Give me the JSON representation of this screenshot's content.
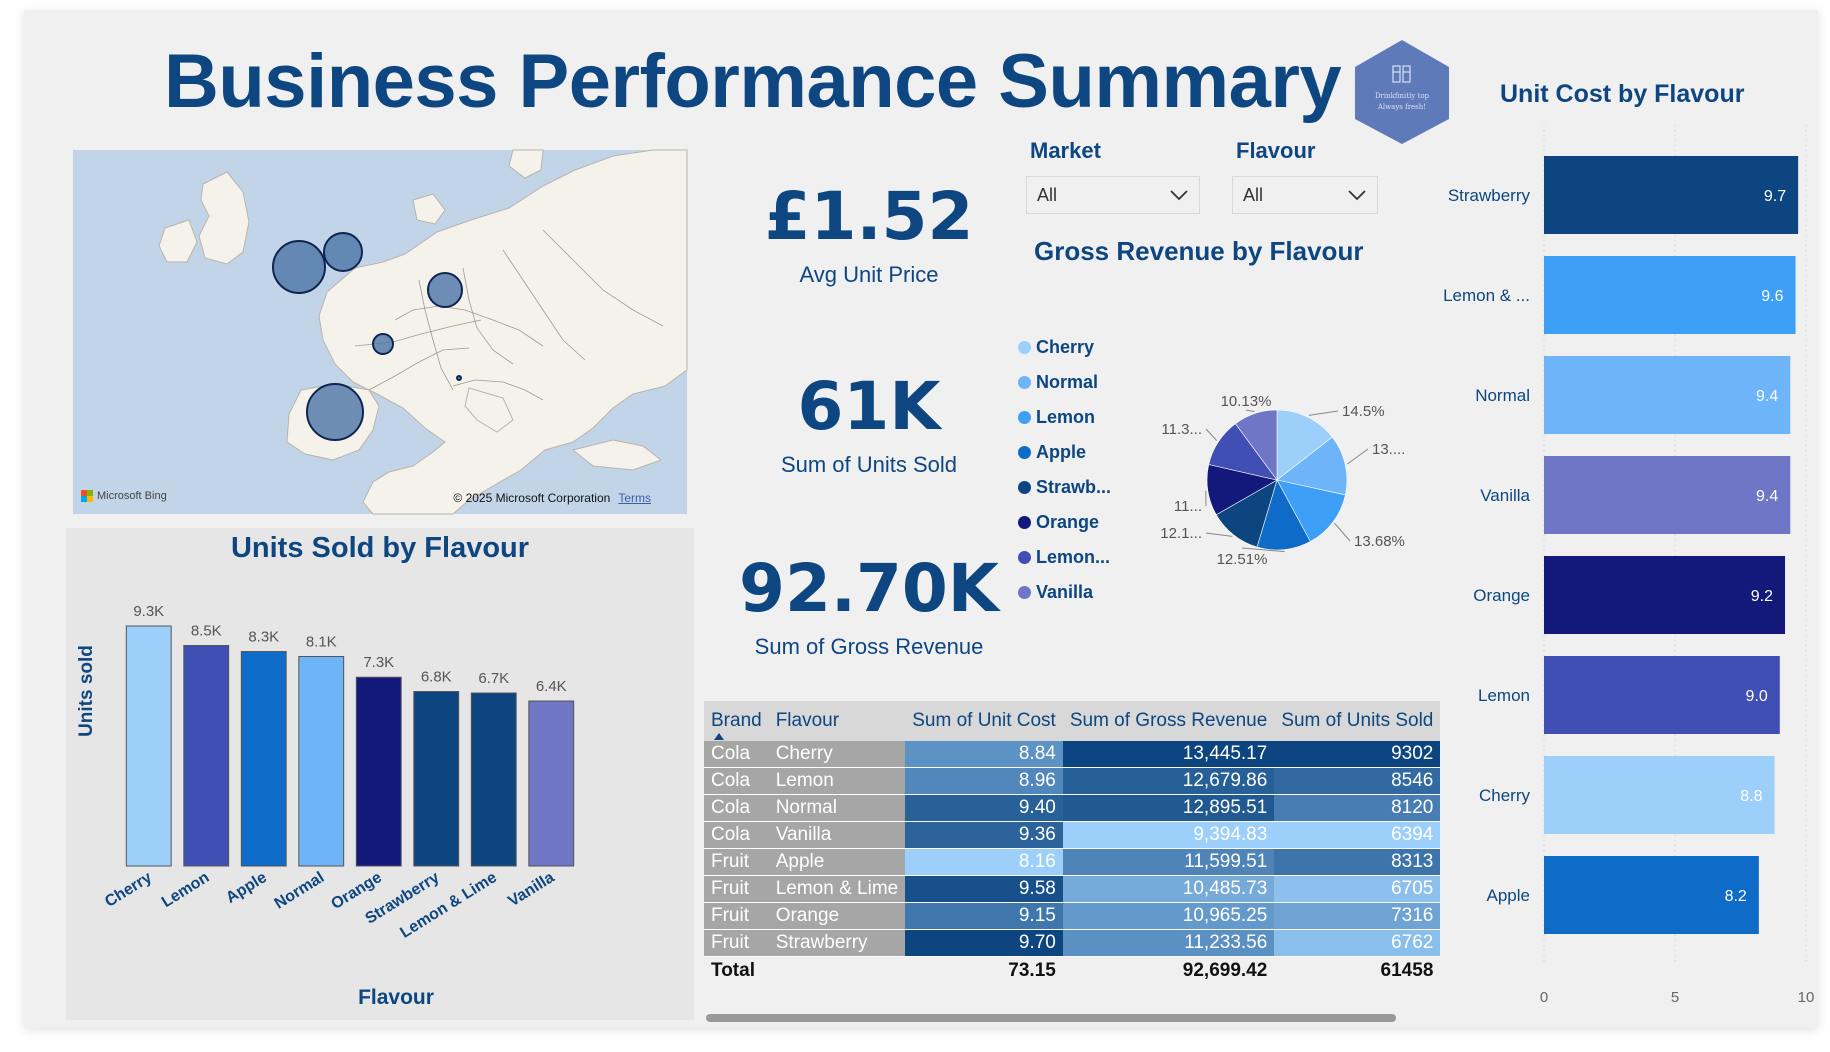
{
  "title": "Business Performance Summary",
  "logo": {
    "line1": "Drinkfinitly top",
    "line2": "Always fresh!",
    "color": "#5f7ab8"
  },
  "map": {
    "attribution_brand": "Microsoft Bing",
    "copyright": "© 2025 Microsoft Corporation",
    "terms": "Terms",
    "colors": {
      "water": "#c2d5e8",
      "land": "#f5f2ec",
      "bubble": "#4f76a8"
    }
  },
  "kpis": {
    "avg_unit_price": {
      "value": "£1.52",
      "label": "Avg Unit Price"
    },
    "units_sold": {
      "value": "61K",
      "label": "Sum of Units Sold"
    },
    "gross_revenue": {
      "value": "92.70K",
      "label": "Sum of Gross Revenue"
    }
  },
  "slicers": {
    "market": {
      "label": "Market",
      "value": "All"
    },
    "flavour": {
      "label": "Flavour",
      "value": "All"
    }
  },
  "table": {
    "headers": [
      "Brand",
      "Flavour",
      "Sum of Unit Cost",
      "Sum of Gross Revenue",
      "Sum of Units Sold"
    ],
    "rows": [
      {
        "brand": "Cola",
        "flavour": "Cherry",
        "unit_cost": "8.84",
        "gross_revenue": "13,445.17",
        "units_sold": "9302"
      },
      {
        "brand": "Cola",
        "flavour": "Lemon",
        "unit_cost": "8.96",
        "gross_revenue": "12,679.86",
        "units_sold": "8546"
      },
      {
        "brand": "Cola",
        "flavour": "Normal",
        "unit_cost": "9.40",
        "gross_revenue": "12,895.51",
        "units_sold": "8120"
      },
      {
        "brand": "Cola",
        "flavour": "Vanilla",
        "unit_cost": "9.36",
        "gross_revenue": "9,394.83",
        "units_sold": "6394"
      },
      {
        "brand": "Fruit",
        "flavour": "Apple",
        "unit_cost": "8.16",
        "gross_revenue": "11,599.51",
        "units_sold": "8313"
      },
      {
        "brand": "Fruit",
        "flavour": "Lemon & Lime",
        "unit_cost": "9.58",
        "gross_revenue": "10,485.73",
        "units_sold": "6705"
      },
      {
        "brand": "Fruit",
        "flavour": "Orange",
        "unit_cost": "9.15",
        "gross_revenue": "10,965.25",
        "units_sold": "7316"
      },
      {
        "brand": "Fruit",
        "flavour": "Strawberry",
        "unit_cost": "9.70",
        "gross_revenue": "11,233.56",
        "units_sold": "6762"
      }
    ],
    "total": {
      "label": "Total",
      "unit_cost": "73.15",
      "gross_revenue": "92,699.42",
      "units_sold": "61458"
    }
  },
  "chart_data": [
    {
      "type": "bar",
      "title": "Units Sold by Flavour",
      "xlabel": "Flavour",
      "ylabel": "Units sold",
      "categories": [
        "Cherry",
        "Lemon",
        "Apple",
        "Normal",
        "Orange",
        "Strawberry",
        "Lemon & Lime",
        "Vanilla"
      ],
      "values": [
        9302,
        8546,
        8313,
        8120,
        7316,
        6762,
        6705,
        6394
      ],
      "data_labels": [
        "9.3K",
        "8.5K",
        "8.3K",
        "8.1K",
        "7.3K",
        "6.8K",
        "6.7K",
        "6.4K"
      ],
      "colors": [
        "#9ccffa",
        "#3f4fb4",
        "#0f6bc8",
        "#6db4f8",
        "#12197a",
        "#0c4580",
        "#0c4580",
        "#6f76c6"
      ],
      "ylim": [
        0,
        9302
      ],
      "grid": false
    },
    {
      "type": "pie",
      "title": "Gross Revenue by Flavour",
      "legend_position": "left",
      "labels": [
        "Cherry",
        "Normal",
        "Lemon",
        "Apple",
        "Strawberry",
        "Orange",
        "Lemon & Lime",
        "Vanilla"
      ],
      "legend_labels": [
        "Cherry",
        "Normal",
        "Lemon",
        "Apple",
        "Strawb...",
        "Orange",
        "Lemon...",
        "Vanilla"
      ],
      "values": [
        14.5,
        13.91,
        13.68,
        12.51,
        12.12,
        11.83,
        11.31,
        10.13
      ],
      "data_labels": [
        "14.5%",
        "13....",
        "13.68%",
        "12.51%",
        "12.1...",
        "11...",
        "11.3...",
        "10.13%"
      ],
      "colors": [
        "#9ccffa",
        "#6db4f8",
        "#3d9ff5",
        "#0f6bc8",
        "#0c4580",
        "#12197a",
        "#3f4fb4",
        "#6f76c6"
      ]
    },
    {
      "type": "bar",
      "orientation": "horizontal",
      "title": "Unit Cost by Flavour",
      "categories": [
        "Strawberry",
        "Lemon & Lime",
        "Normal",
        "Vanilla",
        "Orange",
        "Lemon",
        "Cherry",
        "Apple"
      ],
      "category_labels": [
        "Strawberry",
        "Lemon & ...",
        "Normal",
        "Vanilla",
        "Orange",
        "Lemon",
        "Cherry",
        "Apple"
      ],
      "values": [
        9.7,
        9.6,
        9.4,
        9.4,
        9.2,
        9.0,
        8.8,
        8.2
      ],
      "data_labels": [
        "9.7",
        "9.6",
        "9.4",
        "9.4",
        "9.2",
        "9.0",
        "8.8",
        "8.2"
      ],
      "colors": [
        "#0c4580",
        "#3d9ff5",
        "#6db4f8",
        "#6f76c6",
        "#12197a",
        "#3f4fb4",
        "#9ccffa",
        "#0f6bc8"
      ],
      "xlim": [
        0,
        10
      ],
      "xticks": [
        "0",
        "5",
        "10"
      ],
      "grid": true
    }
  ]
}
